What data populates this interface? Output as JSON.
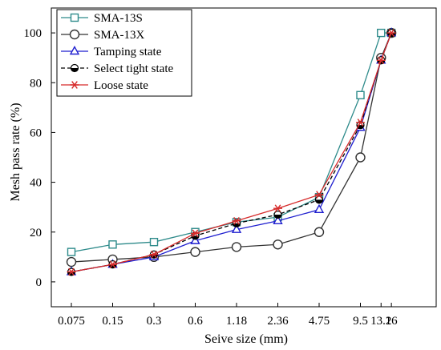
{
  "chart_data": {
    "type": "line",
    "title": "",
    "xlabel": "Seive size (mm)",
    "ylabel": "Mesh pass rate (%)",
    "categories": [
      "0.075",
      "0.15",
      "0.3",
      "0.6",
      "1.18",
      "2.36",
      "4.75",
      "9.5",
      "13.2",
      "16"
    ],
    "category_positions": [
      0,
      1,
      2,
      3,
      4,
      5,
      6,
      7,
      7.5,
      7.75
    ],
    "ylim": [
      -10,
      110
    ],
    "yticks": [
      0,
      20,
      40,
      60,
      80,
      100
    ],
    "grid": false,
    "legend_position": "top-left",
    "series": [
      {
        "name": "SMA-13S",
        "color": "#2e8b8b",
        "marker": "square",
        "dash": "",
        "values": [
          12,
          15,
          16,
          20,
          24,
          26,
          34,
          75,
          100,
          100
        ]
      },
      {
        "name": "SMA-13X",
        "color": "#333333",
        "marker": "circle-open",
        "dash": "",
        "values": [
          8,
          9,
          10,
          12,
          14,
          15,
          20,
          50,
          90,
          100
        ]
      },
      {
        "name": "Tamping state",
        "color": "#1f1fcf",
        "marker": "triangle",
        "dash": "",
        "values": [
          4,
          7,
          10,
          16.5,
          21,
          24.5,
          29,
          62,
          89,
          100
        ]
      },
      {
        "name": "Select tight state",
        "color": "#000000",
        "marker": "circle-half",
        "dash": "5,3",
        "values": [
          4,
          7,
          11,
          18.5,
          23.5,
          27,
          33,
          63,
          89,
          100
        ]
      },
      {
        "name": "Loose state",
        "color": "#d62b2b",
        "marker": "asterisk",
        "dash": "",
        "values": [
          4,
          7,
          11,
          19.5,
          24.5,
          29.5,
          35,
          64,
          89,
          100
        ]
      }
    ]
  }
}
